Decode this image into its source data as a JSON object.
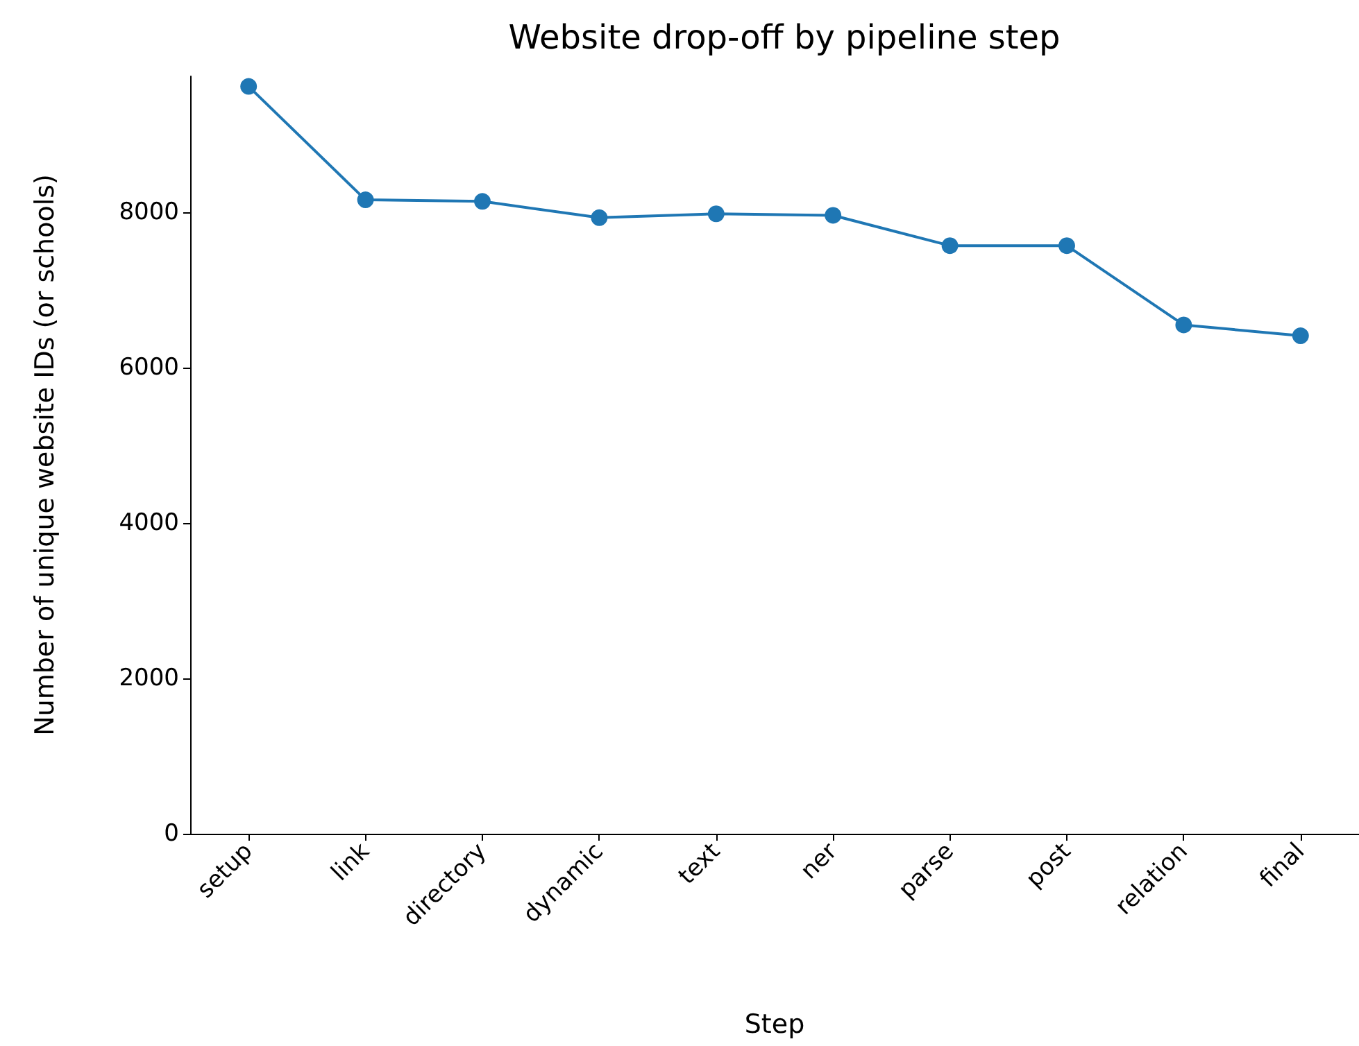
{
  "chart_data": {
    "type": "line",
    "title": "Website drop-off by pipeline step",
    "xlabel": "Step",
    "ylabel": "Number of unique website IDs (or schools)",
    "categories": [
      "setup",
      "link",
      "directory",
      "dynamic",
      "text",
      "ner",
      "parse",
      "post",
      "relation",
      "final"
    ],
    "series": [
      {
        "color": "#1f77b4",
        "values": [
          9620,
          8160,
          8140,
          7930,
          7980,
          7960,
          7570,
          7570,
          6550,
          6410
        ]
      }
    ],
    "ylim": [
      0,
      9750
    ],
    "yticks": [
      0,
      2000,
      4000,
      6000,
      8000
    ],
    "grid": false,
    "marker": "circle",
    "line_style": "solid"
  }
}
